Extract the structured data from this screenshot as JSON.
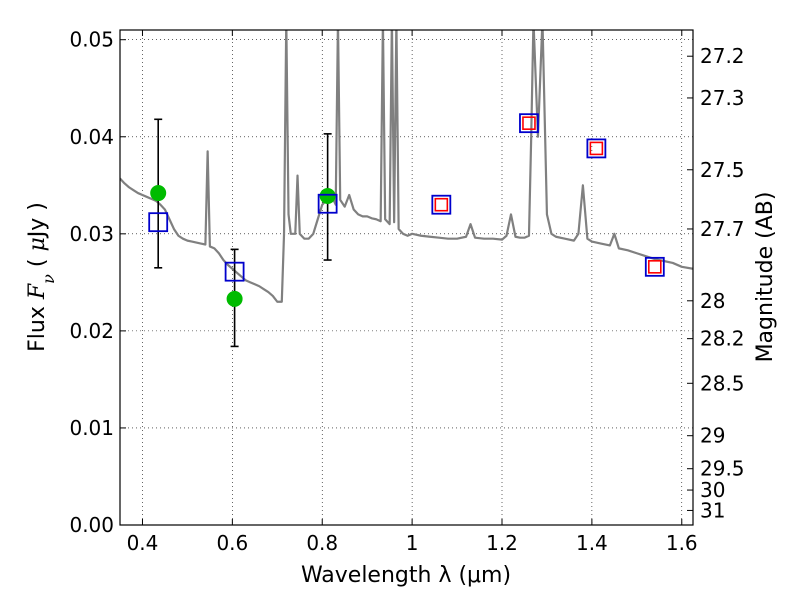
{
  "chart_data": {
    "type": "scatter",
    "xlabel": "Wavelength  λ (μm)",
    "ylabel": "Flux  F_ν  ( μJy )",
    "ylabel_parts": [
      "Flux ",
      "F",
      "ν",
      "  ( ",
      "μ",
      "Jy )"
    ],
    "y2label": "Magnitude (AB)",
    "xlim": [
      0.35,
      1.625
    ],
    "ylim": [
      0.0,
      0.051
    ],
    "grid": true,
    "x_ticks": [
      0.4,
      0.6,
      0.8,
      1.0,
      1.2,
      1.4,
      1.6
    ],
    "x_tick_labels": [
      "0.4",
      "0.6",
      "0.8",
      "1",
      "1.2",
      "1.4",
      "1.6"
    ],
    "y_ticks": [
      0.0,
      0.01,
      0.02,
      0.03,
      0.04,
      0.05
    ],
    "y_tick_labels": [
      "0.00",
      "0.01",
      "0.02",
      "0.03",
      "0.04",
      "0.05"
    ],
    "y2_ticks": [
      {
        "label": "27.2",
        "flux": 0.0483
      },
      {
        "label": "27.3",
        "flux": 0.044
      },
      {
        "label": "27.5",
        "flux": 0.0366
      },
      {
        "label": "27.7",
        "flux": 0.0305
      },
      {
        "label": "28",
        "flux": 0.0231
      },
      {
        "label": "28.2",
        "flux": 0.0192
      },
      {
        "label": "28.5",
        "flux": 0.0146
      },
      {
        "label": "29",
        "flux": 0.0092
      },
      {
        "label": "29.5",
        "flux": 0.0058
      },
      {
        "label": "30",
        "flux": 0.0036
      },
      {
        "label": "31",
        "flux": 0.0015
      }
    ],
    "colors": {
      "sed_model": "#808080",
      "observed": "#00bb00",
      "model_photometry": "#0000cc",
      "model_photometry_inner": "#ff0000",
      "error_bar": "#000000"
    },
    "series": [
      {
        "type": "line",
        "points": [
          [
            0.35,
            0.0357
          ],
          [
            0.36,
            0.0352
          ],
          [
            0.37,
            0.0348
          ],
          [
            0.38,
            0.0345
          ],
          [
            0.39,
            0.0342
          ],
          [
            0.4,
            0.034
          ],
          [
            0.41,
            0.0338
          ],
          [
            0.42,
            0.0336
          ],
          [
            0.43,
            0.0334
          ],
          [
            0.44,
            0.033
          ],
          [
            0.45,
            0.0325
          ],
          [
            0.46,
            0.0315
          ],
          [
            0.47,
            0.0305
          ],
          [
            0.48,
            0.0298
          ],
          [
            0.49,
            0.0295
          ],
          [
            0.5,
            0.0293
          ],
          [
            0.51,
            0.0292
          ],
          [
            0.52,
            0.0291
          ],
          [
            0.53,
            0.029
          ],
          [
            0.54,
            0.0289
          ],
          [
            0.545,
            0.0385
          ],
          [
            0.55,
            0.0287
          ],
          [
            0.56,
            0.0285
          ],
          [
            0.57,
            0.028
          ],
          [
            0.58,
            0.0273
          ],
          [
            0.59,
            0.0268
          ],
          [
            0.6,
            0.0264
          ],
          [
            0.61,
            0.026
          ],
          [
            0.62,
            0.0256
          ],
          [
            0.63,
            0.0252
          ],
          [
            0.64,
            0.025
          ],
          [
            0.65,
            0.0248
          ],
          [
            0.66,
            0.0246
          ],
          [
            0.67,
            0.0243
          ],
          [
            0.68,
            0.024
          ],
          [
            0.69,
            0.0236
          ],
          [
            0.7,
            0.023
          ],
          [
            0.71,
            0.023
          ],
          [
            0.715,
            0.03
          ],
          [
            0.72,
            0.052
          ],
          [
            0.725,
            0.032
          ],
          [
            0.73,
            0.03
          ],
          [
            0.74,
            0.03
          ],
          [
            0.745,
            0.036
          ],
          [
            0.75,
            0.03
          ],
          [
            0.76,
            0.0295
          ],
          [
            0.77,
            0.0295
          ],
          [
            0.78,
            0.03
          ],
          [
            0.79,
            0.0315
          ],
          [
            0.8,
            0.033
          ],
          [
            0.81,
            0.0335
          ],
          [
            0.82,
            0.034
          ],
          [
            0.83,
            0.033
          ],
          [
            0.835,
            0.052
          ],
          [
            0.84,
            0.0335
          ],
          [
            0.85,
            0.0328
          ],
          [
            0.86,
            0.034
          ],
          [
            0.87,
            0.0325
          ],
          [
            0.88,
            0.032
          ],
          [
            0.89,
            0.0318
          ],
          [
            0.9,
            0.0318
          ],
          [
            0.91,
            0.0316
          ],
          [
            0.92,
            0.0315
          ],
          [
            0.93,
            0.0313
          ],
          [
            0.935,
            0.052
          ],
          [
            0.94,
            0.0315
          ],
          [
            0.95,
            0.031
          ],
          [
            0.955,
            0.052
          ],
          [
            0.96,
            0.0312
          ],
          [
            0.965,
            0.052
          ],
          [
            0.97,
            0.0305
          ],
          [
            0.98,
            0.03
          ],
          [
            0.99,
            0.0298
          ],
          [
            1.0,
            0.03
          ],
          [
            1.02,
            0.0298
          ],
          [
            1.04,
            0.0297
          ],
          [
            1.06,
            0.0296
          ],
          [
            1.08,
            0.0295
          ],
          [
            1.1,
            0.0295
          ],
          [
            1.12,
            0.0297
          ],
          [
            1.13,
            0.031
          ],
          [
            1.14,
            0.0296
          ],
          [
            1.16,
            0.0295
          ],
          [
            1.18,
            0.0295
          ],
          [
            1.2,
            0.0294
          ],
          [
            1.21,
            0.0298
          ],
          [
            1.22,
            0.032
          ],
          [
            1.23,
            0.0297
          ],
          [
            1.24,
            0.0296
          ],
          [
            1.25,
            0.0296
          ],
          [
            1.26,
            0.0298
          ],
          [
            1.265,
            0.04
          ],
          [
            1.27,
            0.052
          ],
          [
            1.28,
            0.04
          ],
          [
            1.29,
            0.052
          ],
          [
            1.3,
            0.032
          ],
          [
            1.31,
            0.03
          ],
          [
            1.32,
            0.0297
          ],
          [
            1.34,
            0.0295
          ],
          [
            1.36,
            0.0293
          ],
          [
            1.37,
            0.03
          ],
          [
            1.38,
            0.035
          ],
          [
            1.39,
            0.0295
          ],
          [
            1.4,
            0.0292
          ],
          [
            1.42,
            0.029
          ],
          [
            1.44,
            0.0288
          ],
          [
            1.45,
            0.03
          ],
          [
            1.46,
            0.0285
          ],
          [
            1.48,
            0.0283
          ],
          [
            1.5,
            0.028
          ],
          [
            1.52,
            0.0277
          ],
          [
            1.54,
            0.0274
          ],
          [
            1.56,
            0.0272
          ],
          [
            1.58,
            0.027
          ],
          [
            1.6,
            0.0266
          ],
          [
            1.625,
            0.0264
          ]
        ]
      },
      {
        "type": "errorbar",
        "points": [
          {
            "x": 0.435,
            "y": 0.0342,
            "yerr_low": 0.0265,
            "yerr_high": 0.0418
          },
          {
            "x": 0.605,
            "y": 0.0233,
            "yerr_low": 0.0184,
            "yerr_high": 0.0284
          },
          {
            "x": 0.812,
            "y": 0.0339,
            "yerr_low": 0.0273,
            "yerr_high": 0.0403
          }
        ]
      },
      {
        "type": "square_markers",
        "points": [
          {
            "x": 0.435,
            "y": 0.0312
          },
          {
            "x": 0.605,
            "y": 0.0261
          },
          {
            "x": 0.812,
            "y": 0.0331
          },
          {
            "x": 1.065,
            "y": 0.033
          },
          {
            "x": 1.26,
            "y": 0.0414
          },
          {
            "x": 1.41,
            "y": 0.0388
          },
          {
            "x": 1.54,
            "y": 0.0266
          }
        ]
      },
      {
        "type": "square_markers_inner",
        "points": [
          {
            "x": 1.065,
            "y": 0.033
          },
          {
            "x": 1.26,
            "y": 0.0414
          },
          {
            "x": 1.41,
            "y": 0.0388
          },
          {
            "x": 1.54,
            "y": 0.0266
          }
        ]
      }
    ]
  }
}
